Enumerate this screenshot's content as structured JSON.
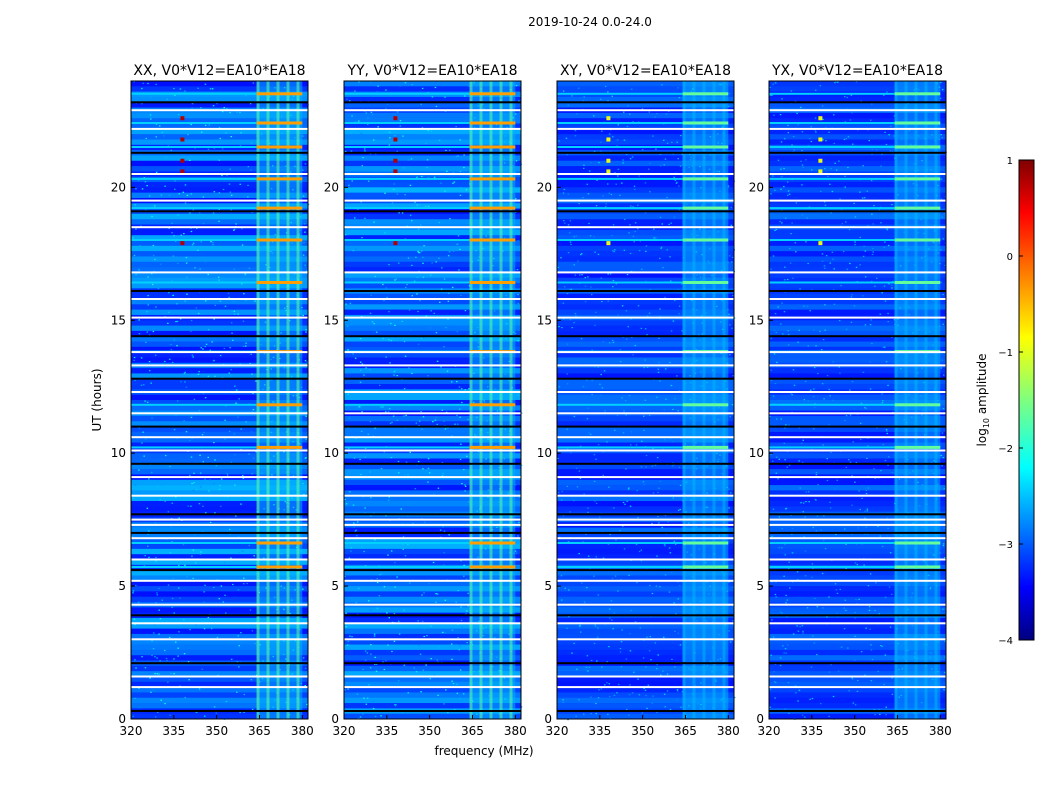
{
  "figure": {
    "suptitle": "2019-10-24 0.0-24.0",
    "xlabel": "frequency (MHz)",
    "ylabel": "UT (hours)"
  },
  "chart_data": {
    "type": "heatmap",
    "x_range_mhz": [
      320,
      382
    ],
    "y_range_hours": [
      0,
      24
    ],
    "x_ticks": [
      320,
      335,
      350,
      365,
      380
    ],
    "y_ticks": [
      0,
      5,
      10,
      15,
      20
    ],
    "panels": [
      {
        "title": "XX, V0*V12=EA10*EA18",
        "level": 1.0
      },
      {
        "title": "YY, V0*V12=EA10*EA18",
        "level": 1.0
      },
      {
        "title": "XY, V0*V12=EA10*EA18",
        "level": 0.6
      },
      {
        "title": "YX, V0*V12=EA10*EA18",
        "level": 0.6
      }
    ],
    "colorbar": {
      "label_prefix": "log",
      "label_sub": "10",
      "label_suffix": " amplitude",
      "range": [
        -4,
        1
      ],
      "ticks": [
        -4,
        -3,
        -2,
        -1,
        0,
        1
      ],
      "tick_labels": [
        "−4",
        "−3",
        "−2",
        "−1",
        "0",
        "1"
      ],
      "colormap": "jet"
    },
    "features": {
      "rfi_band_mhz": [
        364,
        380
      ],
      "rfi_columns_mhz": [
        364.5,
        368,
        371.5,
        375,
        378.5
      ],
      "spot_freq_mhz": 338,
      "spot_hours": [
        20.6,
        21,
        21.8,
        22.6,
        17.9
      ],
      "flagged_hours": [
        0.3,
        1.2,
        1.6,
        2.1,
        3.0,
        3.6,
        3.9,
        4.3,
        5.2,
        5.6,
        6.0,
        6.8,
        7.0,
        7.3,
        7.5,
        7.7,
        8.4,
        9.1,
        9.6,
        10.1,
        10.6,
        11.0,
        11.5,
        12.3,
        12.8,
        13.3,
        13.8,
        14.4,
        15.1,
        15.8,
        16.1,
        16.8,
        18.5,
        19.1,
        19.5,
        20.5,
        21.3,
        22.2,
        22.9,
        23.2
      ],
      "bright_rows_hours": [
        6.6,
        5.7,
        10.2,
        11.8,
        13.8,
        16.4,
        18.0,
        19.2,
        20.3,
        21.5,
        22.4,
        23.5
      ]
    }
  }
}
